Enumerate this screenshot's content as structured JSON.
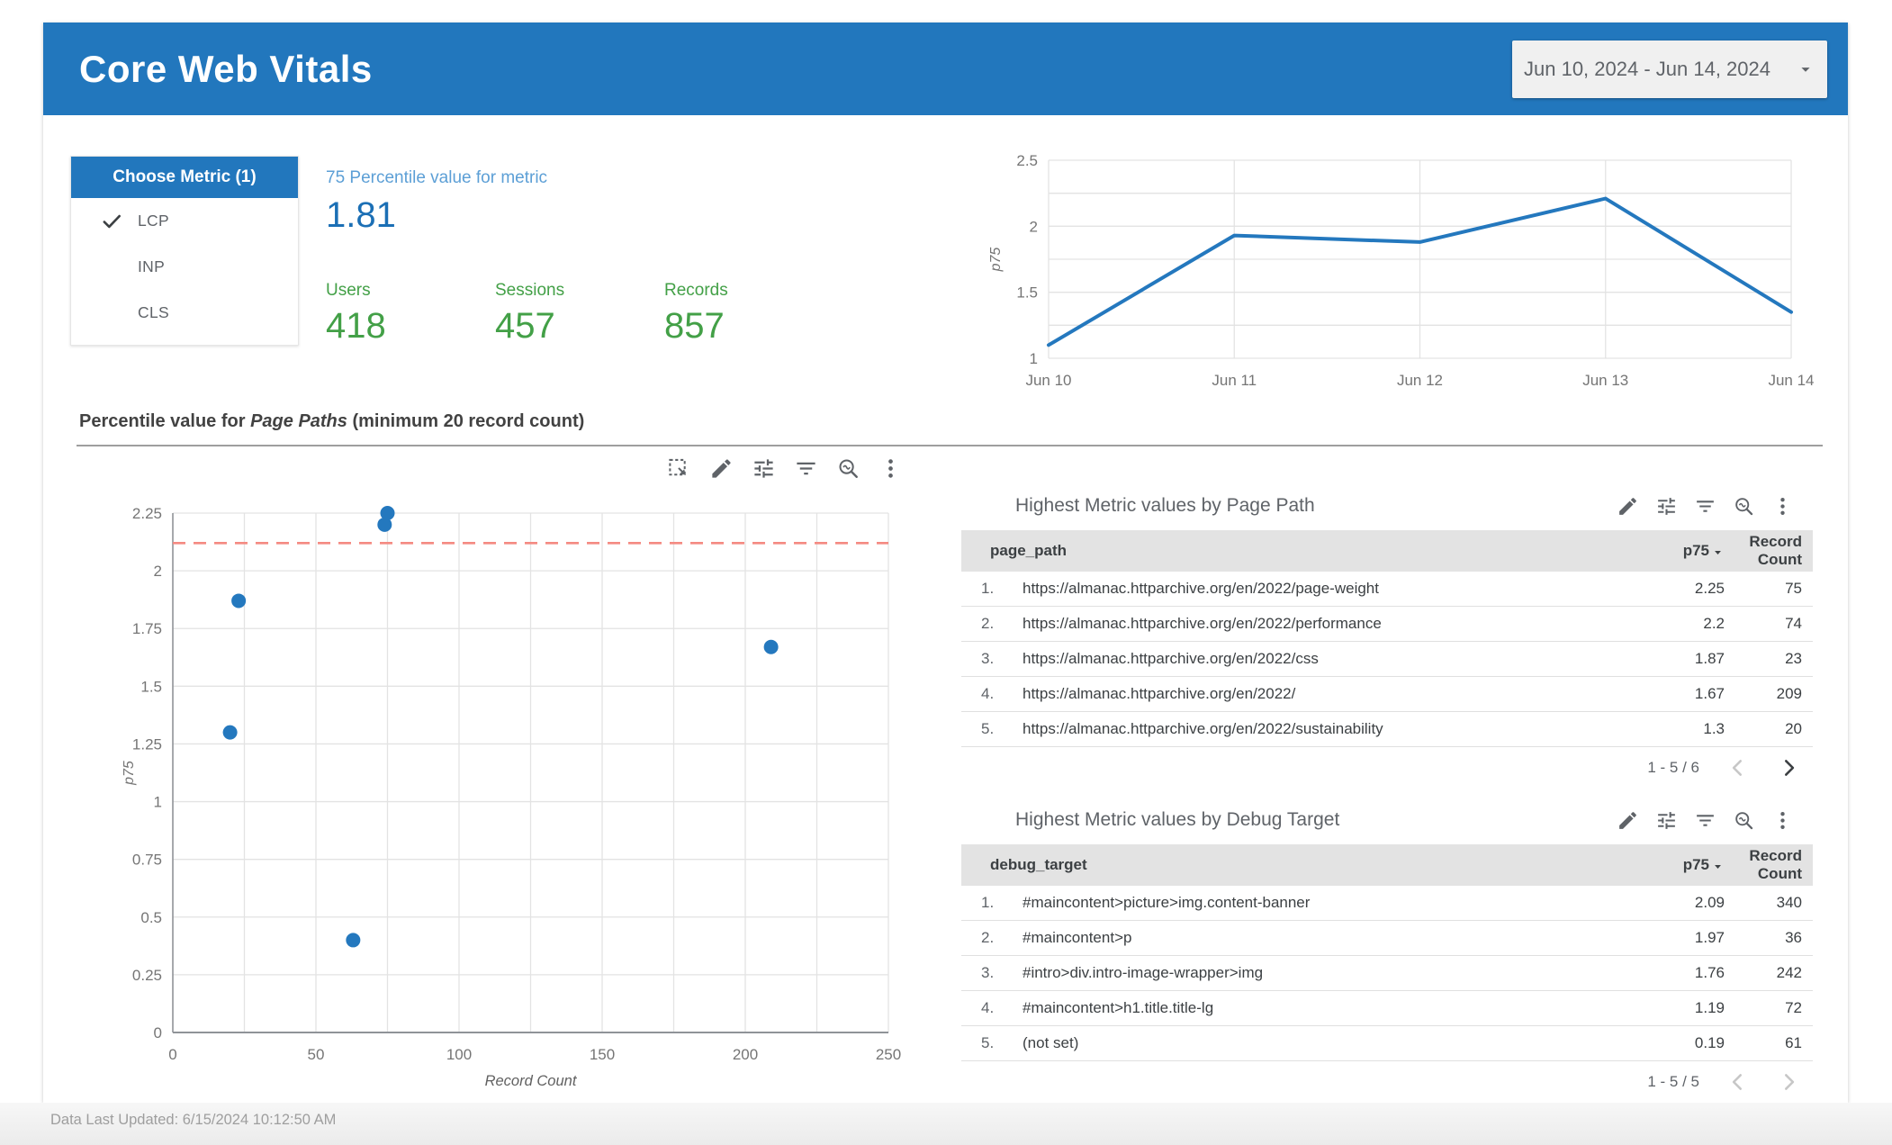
{
  "header": {
    "title": "Core Web Vitals",
    "date_range": "Jun 10, 2024 - Jun 14, 2024"
  },
  "metric_filter": {
    "title": "Choose Metric (1)",
    "options": [
      {
        "label": "LCP",
        "selected": true
      },
      {
        "label": "INP",
        "selected": false
      },
      {
        "label": "CLS",
        "selected": false
      }
    ]
  },
  "scorecards": {
    "primary": {
      "label": "75 Percentile value for metric",
      "value": "1.81"
    },
    "secondary": [
      {
        "label": "Users",
        "value": "418"
      },
      {
        "label": "Sessions",
        "value": "457"
      },
      {
        "label": "Records",
        "value": "857"
      }
    ]
  },
  "section": {
    "title_prefix": "Percentile value for ",
    "title_italic": "Page Paths",
    "title_suffix": " (minimum 20 record count)"
  },
  "chart_toolbar": [
    "box-select",
    "edit",
    "tune",
    "filter",
    "zoom",
    "more"
  ],
  "table_toolbar": [
    "edit",
    "tune",
    "filter",
    "zoom",
    "more"
  ],
  "tables": [
    {
      "title": "Highest Metric values by Page Path",
      "columns": {
        "dimension": "page_path",
        "metric": "p75",
        "count": "Record Count"
      },
      "rows": [
        {
          "num": "1.",
          "dimension": "https://almanac.httparchive.org/en/2022/page-weight",
          "p75": "2.25",
          "count": "75"
        },
        {
          "num": "2.",
          "dimension": "https://almanac.httparchive.org/en/2022/performance",
          "p75": "2.2",
          "count": "74"
        },
        {
          "num": "3.",
          "dimension": "https://almanac.httparchive.org/en/2022/css",
          "p75": "1.87",
          "count": "23"
        },
        {
          "num": "4.",
          "dimension": "https://almanac.httparchive.org/en/2022/",
          "p75": "1.67",
          "count": "209"
        },
        {
          "num": "5.",
          "dimension": "https://almanac.httparchive.org/en/2022/sustainability",
          "p75": "1.3",
          "count": "20"
        }
      ],
      "pagination": {
        "label": "1 - 5 / 6",
        "prev_enabled": false,
        "next_enabled": true
      }
    },
    {
      "title": "Highest Metric values by Debug Target",
      "columns": {
        "dimension": "debug_target",
        "metric": "p75",
        "count": "Record Count"
      },
      "rows": [
        {
          "num": "1.",
          "dimension": "#maincontent>picture>img.content-banner",
          "p75": "2.09",
          "count": "340"
        },
        {
          "num": "2.",
          "dimension": "#maincontent>p",
          "p75": "1.97",
          "count": "36"
        },
        {
          "num": "3.",
          "dimension": "#intro>div.intro-image-wrapper>img",
          "p75": "1.76",
          "count": "242"
        },
        {
          "num": "4.",
          "dimension": "#maincontent>h1.title.title-lg",
          "p75": "1.19",
          "count": "72"
        },
        {
          "num": "5.",
          "dimension": "(not set)",
          "p75": "0.19",
          "count": "61"
        }
      ],
      "pagination": {
        "label": "1 - 5 / 5",
        "prev_enabled": false,
        "next_enabled": false
      }
    }
  ],
  "footer": {
    "last_updated": "Data Last Updated: 6/15/2024 10:12:50 AM"
  },
  "colors": {
    "banner_blue": "#2277bd",
    "score_label_blue": "#5c9fd6",
    "score_value_blue": "#1b6fb5",
    "score_green": "#43a047",
    "chart_blue": "#2478be",
    "reference_red": "#f48a82",
    "icon_gray": "#5f6368",
    "grid_gray": "#e3e3e3",
    "table_header_gray": "#e3e3e3"
  },
  "chart_data": [
    {
      "type": "line",
      "title": "",
      "x": [
        "Jun 10",
        "Jun 11",
        "Jun 12",
        "Jun 13",
        "Jun 14"
      ],
      "series": [
        {
          "name": "p75",
          "values": [
            1.1,
            1.93,
            1.88,
            2.21,
            1.35
          ]
        }
      ],
      "xlabel": "",
      "ylabel": "p75",
      "ylim": [
        1,
        2.5
      ],
      "yticks": [
        1,
        1.5,
        2,
        2.5
      ],
      "grid_step": 0.25,
      "grid": true,
      "legend": false,
      "line_color": "#2478be"
    },
    {
      "type": "scatter",
      "title": "Percentile value for Page Paths (minimum 20 record count)",
      "xlabel": "Record Count",
      "ylabel": "p75",
      "xlim": [
        0,
        250
      ],
      "ylim": [
        0,
        2.25
      ],
      "xticks": [
        0,
        50,
        100,
        150,
        200,
        250
      ],
      "x_grid_step": 25,
      "y_grid_step": 0.25,
      "points": [
        {
          "x": 20,
          "y": 1.3
        },
        {
          "x": 23,
          "y": 1.87
        },
        {
          "x": 63,
          "y": 0.4
        },
        {
          "x": 74,
          "y": 2.2
        },
        {
          "x": 75,
          "y": 2.25
        },
        {
          "x": 209,
          "y": 1.67
        }
      ],
      "reference_line_y": 2.12,
      "grid": true,
      "point_color": "#2478be"
    }
  ]
}
